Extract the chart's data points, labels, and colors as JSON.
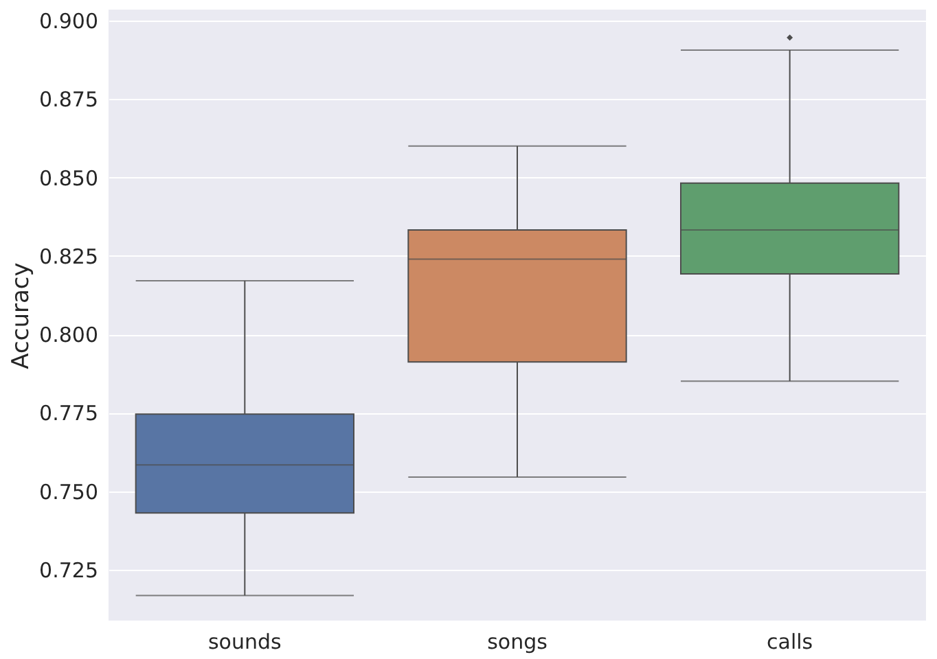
{
  "chart_data": {
    "type": "box",
    "ylabel": "Accuracy",
    "categories": [
      "sounds",
      "songs",
      "calls"
    ],
    "colors": [
      "#5875a4",
      "#cc8963",
      "#5f9e6e"
    ],
    "boxes": [
      {
        "low": 0.7168,
        "q1": 0.7431,
        "median": 0.7584,
        "q3": 0.7746,
        "high": 0.8171
      },
      {
        "low": 0.7545,
        "q1": 0.7912,
        "median": 0.824,
        "q3": 0.8333,
        "high": 0.86
      },
      {
        "low": 0.7851,
        "q1": 0.8193,
        "median": 0.8333,
        "q3": 0.8482,
        "high": 0.8906,
        "outliers": [
          0.8946
        ]
      }
    ],
    "ylim": [
      0.7088,
      0.9035
    ],
    "yticks": [
      {
        "value": 0.725,
        "label": "0.725"
      },
      {
        "value": 0.75,
        "label": "0.750"
      },
      {
        "value": 0.775,
        "label": "0.775"
      },
      {
        "value": 0.8,
        "label": "0.800"
      },
      {
        "value": 0.825,
        "label": "0.825"
      },
      {
        "value": 0.85,
        "label": "0.850"
      },
      {
        "value": 0.875,
        "label": "0.875"
      },
      {
        "value": 0.9,
        "label": "0.900"
      }
    ],
    "grid": "y"
  }
}
